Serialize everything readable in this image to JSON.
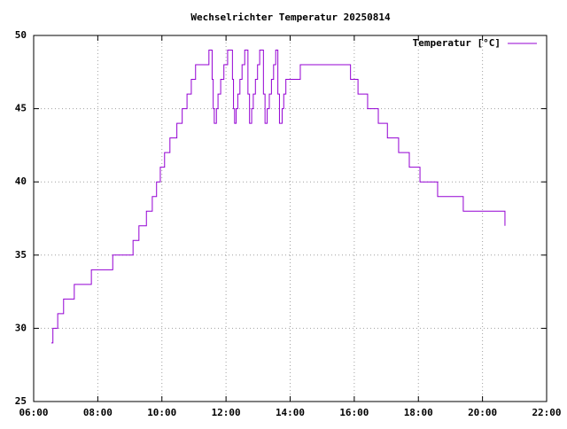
{
  "chart_data": {
    "type": "line",
    "title": "Wechselrichter Temperatur 20250814",
    "step": true,
    "grid": true,
    "legend": "top-right",
    "x": [
      "06:33",
      "06:36",
      "06:45",
      "06:56",
      "07:16",
      "07:48",
      "08:28",
      "09:06",
      "09:17",
      "09:31",
      "09:42",
      "09:50",
      "09:57",
      "10:05",
      "10:15",
      "10:28",
      "10:38",
      "10:47",
      "10:55",
      "11:03",
      "11:28",
      "11:34",
      "11:36",
      "11:38",
      "11:42",
      "11:45",
      "11:50",
      "11:56",
      "12:03",
      "12:12",
      "12:14",
      "12:16",
      "12:19",
      "12:22",
      "12:26",
      "12:30",
      "12:35",
      "12:41",
      "12:44",
      "12:48",
      "12:51",
      "12:55",
      "12:59",
      "13:03",
      "13:10",
      "13:13",
      "13:17",
      "13:21",
      "13:25",
      "13:29",
      "13:33",
      "13:37",
      "13:40",
      "13:45",
      "13:48",
      "13:52",
      "14:19",
      "15:53",
      "16:07",
      "16:25",
      "16:45",
      "17:02",
      "17:23",
      "17:43",
      "18:03",
      "18:36",
      "19:24",
      "20:42"
    ],
    "series": [
      {
        "name": "Temperatur [°C]",
        "color": "#9400d3",
        "values": [
          29,
          30,
          31,
          32,
          33,
          34,
          35,
          36,
          37,
          38,
          39,
          40,
          41,
          42,
          43,
          44,
          45,
          46,
          47,
          48,
          49,
          47,
          45,
          44,
          45,
          46,
          47,
          48,
          49,
          47,
          45,
          44,
          45,
          46,
          47,
          48,
          49,
          46,
          44,
          45,
          46,
          47,
          48,
          49,
          46,
          44,
          45,
          46,
          47,
          48,
          49,
          46,
          44,
          45,
          46,
          47,
          48,
          47,
          46,
          45,
          44,
          43,
          42,
          41,
          40,
          39,
          38,
          37
        ]
      }
    ],
    "xlim": [
      "06:00",
      "22:00"
    ],
    "xticks": [
      "06:00",
      "08:00",
      "10:00",
      "12:00",
      "14:00",
      "16:00",
      "18:00",
      "20:00",
      "22:00"
    ],
    "ylim": [
      25,
      50
    ],
    "yticks": [
      25,
      30,
      35,
      40,
      45,
      50
    ]
  }
}
